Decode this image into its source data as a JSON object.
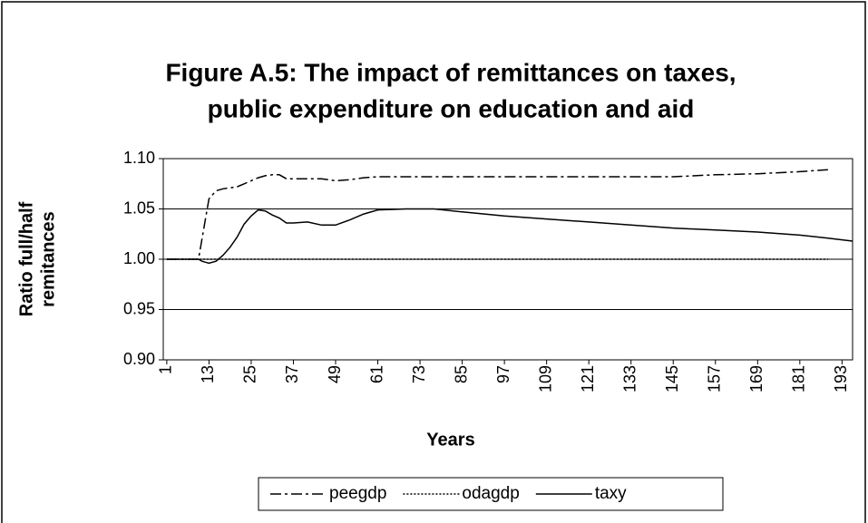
{
  "chart_data": {
    "type": "line",
    "title": [
      "Figure A.5: The impact of remittances on taxes,",
      "public expenditure on education and aid"
    ],
    "ylabel": [
      "Ratio full/half",
      "remitances"
    ],
    "xlabel": "Years",
    "x": [
      1,
      5,
      9,
      10,
      11,
      12,
      13,
      15,
      17,
      19,
      21,
      23,
      25,
      27,
      29,
      31,
      33,
      35,
      37,
      41,
      45,
      49,
      53,
      57,
      61,
      69,
      77,
      85,
      97,
      109,
      121,
      133,
      145,
      157,
      169,
      181,
      189,
      196
    ],
    "series": [
      {
        "name": "peegdp",
        "color": "#000000",
        "dash": "dashdot",
        "values": [
          1.0,
          1.0,
          1.0,
          1.0,
          1.02,
          1.04,
          1.06,
          1.068,
          1.07,
          1.071,
          1.072,
          1.075,
          1.078,
          1.081,
          1.083,
          1.084,
          1.084,
          1.08,
          1.08,
          1.08,
          1.08,
          1.078,
          1.079,
          1.081,
          1.082,
          1.082,
          1.082,
          1.082,
          1.082,
          1.082,
          1.082,
          1.082,
          1.082,
          1.084,
          1.085,
          1.087,
          1.089,
          null
        ]
      },
      {
        "name": "odagdp",
        "color": "#000000",
        "dash": "dotted",
        "values": [
          1.0,
          1.0,
          1.0,
          1.0,
          1.0,
          1.0,
          1.0,
          1.0,
          1.0,
          1.0,
          1.0,
          1.0,
          1.0,
          1.0,
          1.0,
          1.0,
          1.0,
          1.0,
          1.0,
          1.0,
          1.0,
          1.0,
          1.0,
          1.0,
          1.0,
          1.0,
          1.0,
          1.0,
          1.0,
          1.0,
          1.0,
          1.0,
          1.0,
          1.0,
          1.0,
          1.0,
          1.0,
          null
        ]
      },
      {
        "name": "taxy",
        "color": "#000000",
        "dash": "solid",
        "values": [
          1.0,
          1.0,
          1.0,
          1.0,
          0.998,
          0.997,
          0.996,
          0.998,
          1.004,
          1.012,
          1.022,
          1.035,
          1.043,
          1.049,
          1.048,
          1.044,
          1.041,
          1.036,
          1.036,
          1.037,
          1.034,
          1.034,
          1.039,
          1.045,
          1.049,
          1.05,
          1.05,
          1.047,
          1.043,
          1.04,
          1.037,
          1.034,
          1.031,
          1.029,
          1.027,
          1.024,
          1.021,
          1.018
        ]
      }
    ],
    "xlim": [
      0,
      196
    ],
    "xticks": [
      1,
      13,
      25,
      37,
      49,
      61,
      73,
      85,
      97,
      109,
      121,
      133,
      145,
      157,
      169,
      181,
      193
    ],
    "ylim": [
      0.9,
      1.1
    ],
    "yticks": [
      {
        "value": 0.9,
        "label": "0.90"
      },
      {
        "value": 0.95,
        "label": "0.95"
      },
      {
        "value": 1.0,
        "label": "1.00"
      },
      {
        "value": 1.05,
        "label": "1.05"
      },
      {
        "value": 1.1,
        "label": "1.10"
      }
    ],
    "grid": true,
    "legend": "bottom"
  }
}
